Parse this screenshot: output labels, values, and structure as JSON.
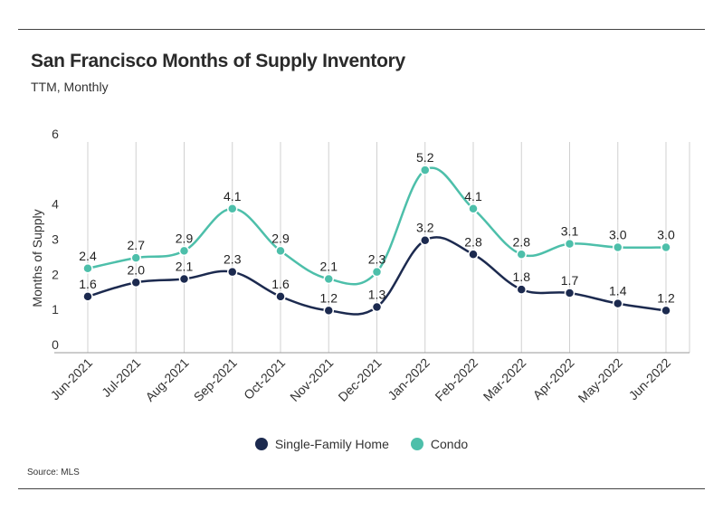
{
  "header": {
    "title": "San Francisco Months of Supply Inventory",
    "subtitle": "TTM, Monthly"
  },
  "footer": {
    "source": "Source:  MLS"
  },
  "colors": {
    "single_family": "#1c2a4f",
    "condo": "#4dbfaa",
    "grid": "#d0d0d0",
    "axis": "#999999"
  },
  "chart_data": {
    "type": "line",
    "title": "San Francisco Months of Supply Inventory",
    "subtitle": "TTM, Monthly",
    "xlabel": "",
    "ylabel": "Months of Supply",
    "ylim": [
      0,
      6
    ],
    "yticks": [
      0,
      1,
      2,
      3,
      4,
      5,
      6
    ],
    "ytick_labels": [
      "0",
      "1",
      "2",
      "3",
      "4",
      "",
      "6"
    ],
    "grid": "vertical",
    "legend_position": "bottom",
    "categories": [
      "Jun-2021",
      "Jul-2021",
      "Aug-2021",
      "Sep-2021",
      "Oct-2021",
      "Nov-2021",
      "Dec-2021",
      "Jan-2022",
      "Feb-2022",
      "Mar-2022",
      "Apr-2022",
      "May-2022",
      "Jun-2022"
    ],
    "series": [
      {
        "name": "Single-Family Home",
        "values": [
          1.6,
          2.0,
          2.1,
          2.3,
          1.6,
          1.2,
          1.3,
          3.2,
          2.8,
          1.8,
          1.7,
          1.4,
          1.2
        ],
        "labels": [
          "1.6",
          "2.0",
          "2.1",
          "2.3",
          "1.6",
          "1.2",
          "1.3",
          "3.2",
          "2.8",
          "1.8",
          "1.7",
          "1.4",
          "1.2"
        ]
      },
      {
        "name": "Condo",
        "values": [
          2.4,
          2.7,
          2.9,
          4.1,
          2.9,
          2.1,
          2.3,
          5.2,
          4.1,
          2.8,
          3.1,
          3.0,
          3.0
        ],
        "labels": [
          "2.4",
          "2.7",
          "2.9",
          "4.1",
          "2.9",
          "2.1",
          "2.3",
          "5.2",
          "4.1",
          "2.8",
          "3.1",
          "3.0",
          "3.0"
        ]
      }
    ]
  }
}
